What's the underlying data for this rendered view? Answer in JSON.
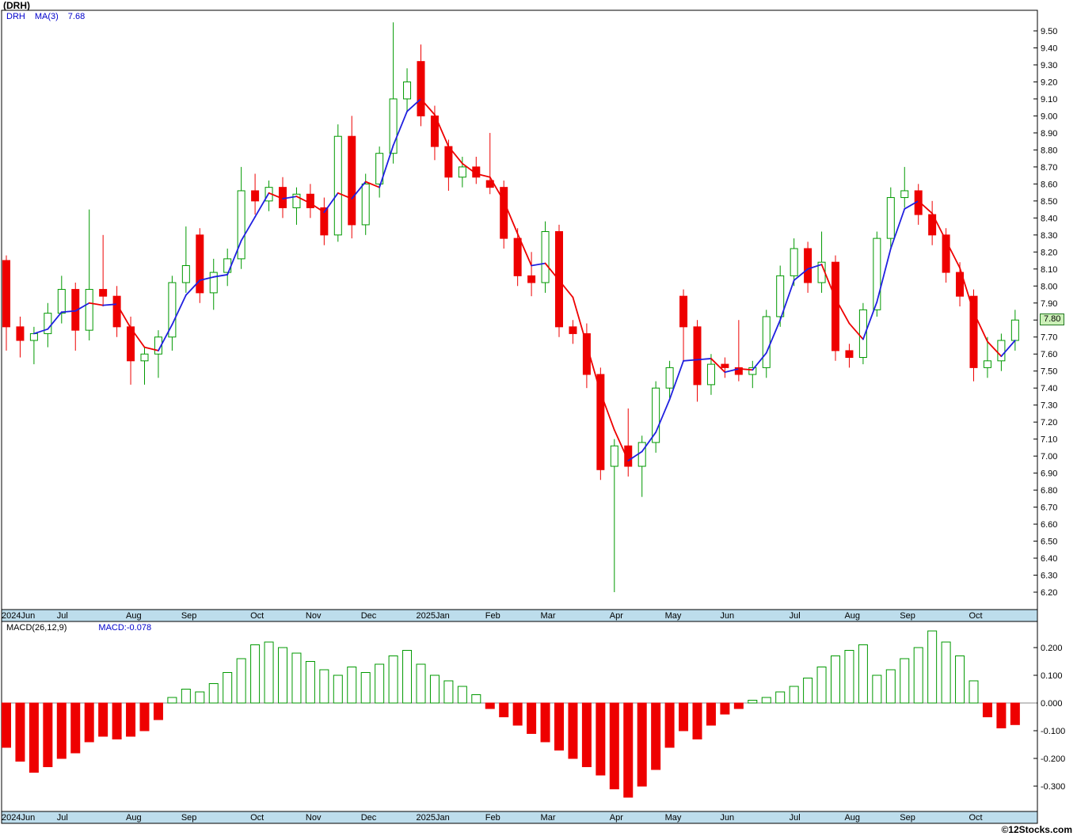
{
  "title": "(DRH)",
  "watermark": "©12Stocks.com",
  "price_pane": {
    "legend": {
      "symbol": "DRH",
      "ma_label": "MA(3)",
      "ma_value": "7.68"
    },
    "last_price_badge": "7.80"
  },
  "macd_pane": {
    "legend": {
      "label": "MACD(26,12,9)",
      "value": "MACD:-0.078"
    }
  },
  "colors": {
    "up": "#009900",
    "down": "#ee0000",
    "ma_up": "#2020e0",
    "ma_down": "#ee0000",
    "band": "#bdddec",
    "badge_bg": "#ccf0b8",
    "badge_border": "#227722",
    "legend_blue": "#0000cc",
    "axis_text": "#000000"
  },
  "chart_data": [
    {
      "type": "candlestick",
      "title": "DRH weekly price with MA(3) overlay",
      "ylabel": "Price",
      "ylim": [
        6.1,
        9.62
      ],
      "y_ticks": {
        "min": 6.2,
        "max": 9.5,
        "step": 0.1
      },
      "grid": false,
      "legend_position": "top-left",
      "overlay": {
        "name": "MA(3)",
        "last_value": 7.68,
        "style": "blue when rising, red when falling"
      },
      "last_close": 7.8,
      "month_labels": [
        {
          "label": "2024Jun",
          "week": 0
        },
        {
          "label": "Jul",
          "week": 4
        },
        {
          "label": "Aug",
          "week": 9
        },
        {
          "label": "Sep",
          "week": 13
        },
        {
          "label": "Oct",
          "week": 18
        },
        {
          "label": "Nov",
          "week": 22
        },
        {
          "label": "Dec",
          "week": 26
        },
        {
          "label": "2025Jan",
          "week": 30
        },
        {
          "label": "Feb",
          "week": 35
        },
        {
          "label": "Mar",
          "week": 39
        },
        {
          "label": "Apr",
          "week": 44
        },
        {
          "label": "May",
          "week": 48
        },
        {
          "label": "Jun",
          "week": 52
        },
        {
          "label": "Jul",
          "week": 57
        },
        {
          "label": "Aug",
          "week": 61
        },
        {
          "label": "Sep",
          "week": 65
        },
        {
          "label": "Oct",
          "week": 70
        }
      ],
      "candles_ohlc": [
        [
          8.15,
          8.18,
          7.62,
          7.76
        ],
        [
          7.76,
          7.82,
          7.58,
          7.68
        ],
        [
          7.68,
          7.76,
          7.54,
          7.72
        ],
        [
          7.72,
          7.9,
          7.64,
          7.84
        ],
        [
          7.84,
          8.06,
          7.78,
          7.98
        ],
        [
          7.98,
          8.02,
          7.62,
          7.74
        ],
        [
          7.74,
          8.45,
          7.68,
          7.98
        ],
        [
          7.98,
          8.3,
          7.88,
          7.94
        ],
        [
          7.94,
          8.0,
          7.7,
          7.76
        ],
        [
          7.76,
          7.82,
          7.42,
          7.56
        ],
        [
          7.56,
          7.64,
          7.42,
          7.6
        ],
        [
          7.6,
          7.74,
          7.46,
          7.7
        ],
        [
          7.7,
          8.06,
          7.62,
          8.02
        ],
        [
          8.02,
          8.35,
          7.96,
          8.12
        ],
        [
          8.3,
          8.34,
          7.9,
          7.96
        ],
        [
          7.96,
          8.16,
          7.86,
          8.08
        ],
        [
          8.08,
          8.22,
          8.0,
          8.16
        ],
        [
          8.16,
          8.7,
          8.1,
          8.56
        ],
        [
          8.56,
          8.66,
          8.42,
          8.5
        ],
        [
          8.5,
          8.62,
          8.44,
          8.58
        ],
        [
          8.58,
          8.64,
          8.4,
          8.46
        ],
        [
          8.46,
          8.58,
          8.36,
          8.54
        ],
        [
          8.54,
          8.6,
          8.4,
          8.46
        ],
        [
          8.46,
          8.52,
          8.24,
          8.3
        ],
        [
          8.3,
          8.95,
          8.26,
          8.88
        ],
        [
          8.88,
          9.0,
          8.28,
          8.36
        ],
        [
          8.36,
          8.66,
          8.3,
          8.6
        ],
        [
          8.6,
          8.82,
          8.52,
          8.78
        ],
        [
          8.78,
          9.55,
          8.72,
          9.1
        ],
        [
          9.1,
          9.28,
          9.02,
          9.2
        ],
        [
          9.32,
          9.42,
          8.94,
          9.0
        ],
        [
          9.0,
          9.06,
          8.74,
          8.82
        ],
        [
          8.82,
          8.86,
          8.56,
          8.64
        ],
        [
          8.64,
          8.76,
          8.58,
          8.7
        ],
        [
          8.7,
          8.76,
          8.6,
          8.64
        ],
        [
          8.62,
          8.9,
          8.54,
          8.58
        ],
        [
          8.58,
          8.62,
          8.22,
          8.28
        ],
        [
          8.28,
          8.34,
          8.0,
          8.06
        ],
        [
          8.06,
          8.2,
          7.94,
          8.02
        ],
        [
          8.02,
          8.38,
          7.96,
          8.32
        ],
        [
          8.32,
          8.36,
          7.7,
          7.76
        ],
        [
          7.76,
          7.8,
          7.66,
          7.72
        ],
        [
          7.72,
          7.78,
          7.4,
          7.48
        ],
        [
          7.48,
          7.52,
          6.86,
          6.92
        ],
        [
          6.94,
          7.1,
          6.2,
          7.06
        ],
        [
          7.06,
          7.28,
          6.88,
          6.94
        ],
        [
          6.94,
          7.12,
          6.76,
          7.08
        ],
        [
          7.08,
          7.44,
          7.02,
          7.4
        ],
        [
          7.4,
          7.56,
          7.34,
          7.52
        ],
        [
          7.94,
          7.98,
          7.56,
          7.76
        ],
        [
          7.76,
          7.8,
          7.32,
          7.42
        ],
        [
          7.42,
          7.6,
          7.36,
          7.54
        ],
        [
          7.54,
          7.58,
          7.46,
          7.52
        ],
        [
          7.52,
          7.8,
          7.44,
          7.48
        ],
        [
          7.48,
          7.56,
          7.4,
          7.52
        ],
        [
          7.52,
          7.86,
          7.46,
          7.82
        ],
        [
          7.82,
          8.12,
          7.76,
          8.06
        ],
        [
          8.06,
          8.28,
          8.0,
          8.22
        ],
        [
          8.22,
          8.26,
          7.96,
          8.02
        ],
        [
          8.02,
          8.32,
          7.96,
          8.14
        ],
        [
          8.14,
          8.18,
          7.56,
          7.62
        ],
        [
          7.62,
          7.66,
          7.52,
          7.58
        ],
        [
          7.58,
          7.9,
          7.54,
          7.86
        ],
        [
          7.86,
          8.32,
          7.82,
          8.28
        ],
        [
          8.28,
          8.58,
          8.22,
          8.52
        ],
        [
          8.52,
          8.7,
          8.46,
          8.56
        ],
        [
          8.56,
          8.6,
          8.36,
          8.42
        ],
        [
          8.42,
          8.5,
          8.24,
          8.3
        ],
        [
          8.3,
          8.34,
          8.02,
          8.08
        ],
        [
          8.08,
          8.14,
          7.88,
          7.94
        ],
        [
          7.94,
          7.98,
          7.44,
          7.52
        ],
        [
          7.52,
          7.7,
          7.46,
          7.56
        ],
        [
          7.56,
          7.72,
          7.5,
          7.68
        ],
        [
          7.68,
          7.86,
          7.62,
          7.8
        ]
      ]
    },
    {
      "type": "bar",
      "title": "MACD(26,12,9) histogram",
      "last_value": -0.078,
      "ylim": [
        -0.39,
        0.29
      ],
      "y_ticks": {
        "min": -0.3,
        "max": 0.2,
        "step": 0.1
      },
      "grid": false,
      "values": [
        -0.16,
        -0.21,
        -0.25,
        -0.23,
        -0.2,
        -0.18,
        -0.14,
        -0.12,
        -0.13,
        -0.12,
        -0.1,
        -0.06,
        0.02,
        0.05,
        0.04,
        0.07,
        0.11,
        0.16,
        0.21,
        0.22,
        0.2,
        0.18,
        0.15,
        0.12,
        0.1,
        0.13,
        0.11,
        0.14,
        0.17,
        0.19,
        0.14,
        0.1,
        0.08,
        0.06,
        0.03,
        -0.02,
        -0.05,
        -0.08,
        -0.11,
        -0.14,
        -0.17,
        -0.2,
        -0.23,
        -0.26,
        -0.31,
        -0.34,
        -0.3,
        -0.24,
        -0.16,
        -0.1,
        -0.13,
        -0.08,
        -0.04,
        -0.02,
        0.01,
        0.02,
        0.04,
        0.06,
        0.09,
        0.13,
        0.17,
        0.19,
        0.21,
        0.1,
        0.12,
        0.16,
        0.2,
        0.26,
        0.22,
        0.17,
        0.08,
        -0.05,
        -0.09,
        -0.078
      ]
    }
  ]
}
